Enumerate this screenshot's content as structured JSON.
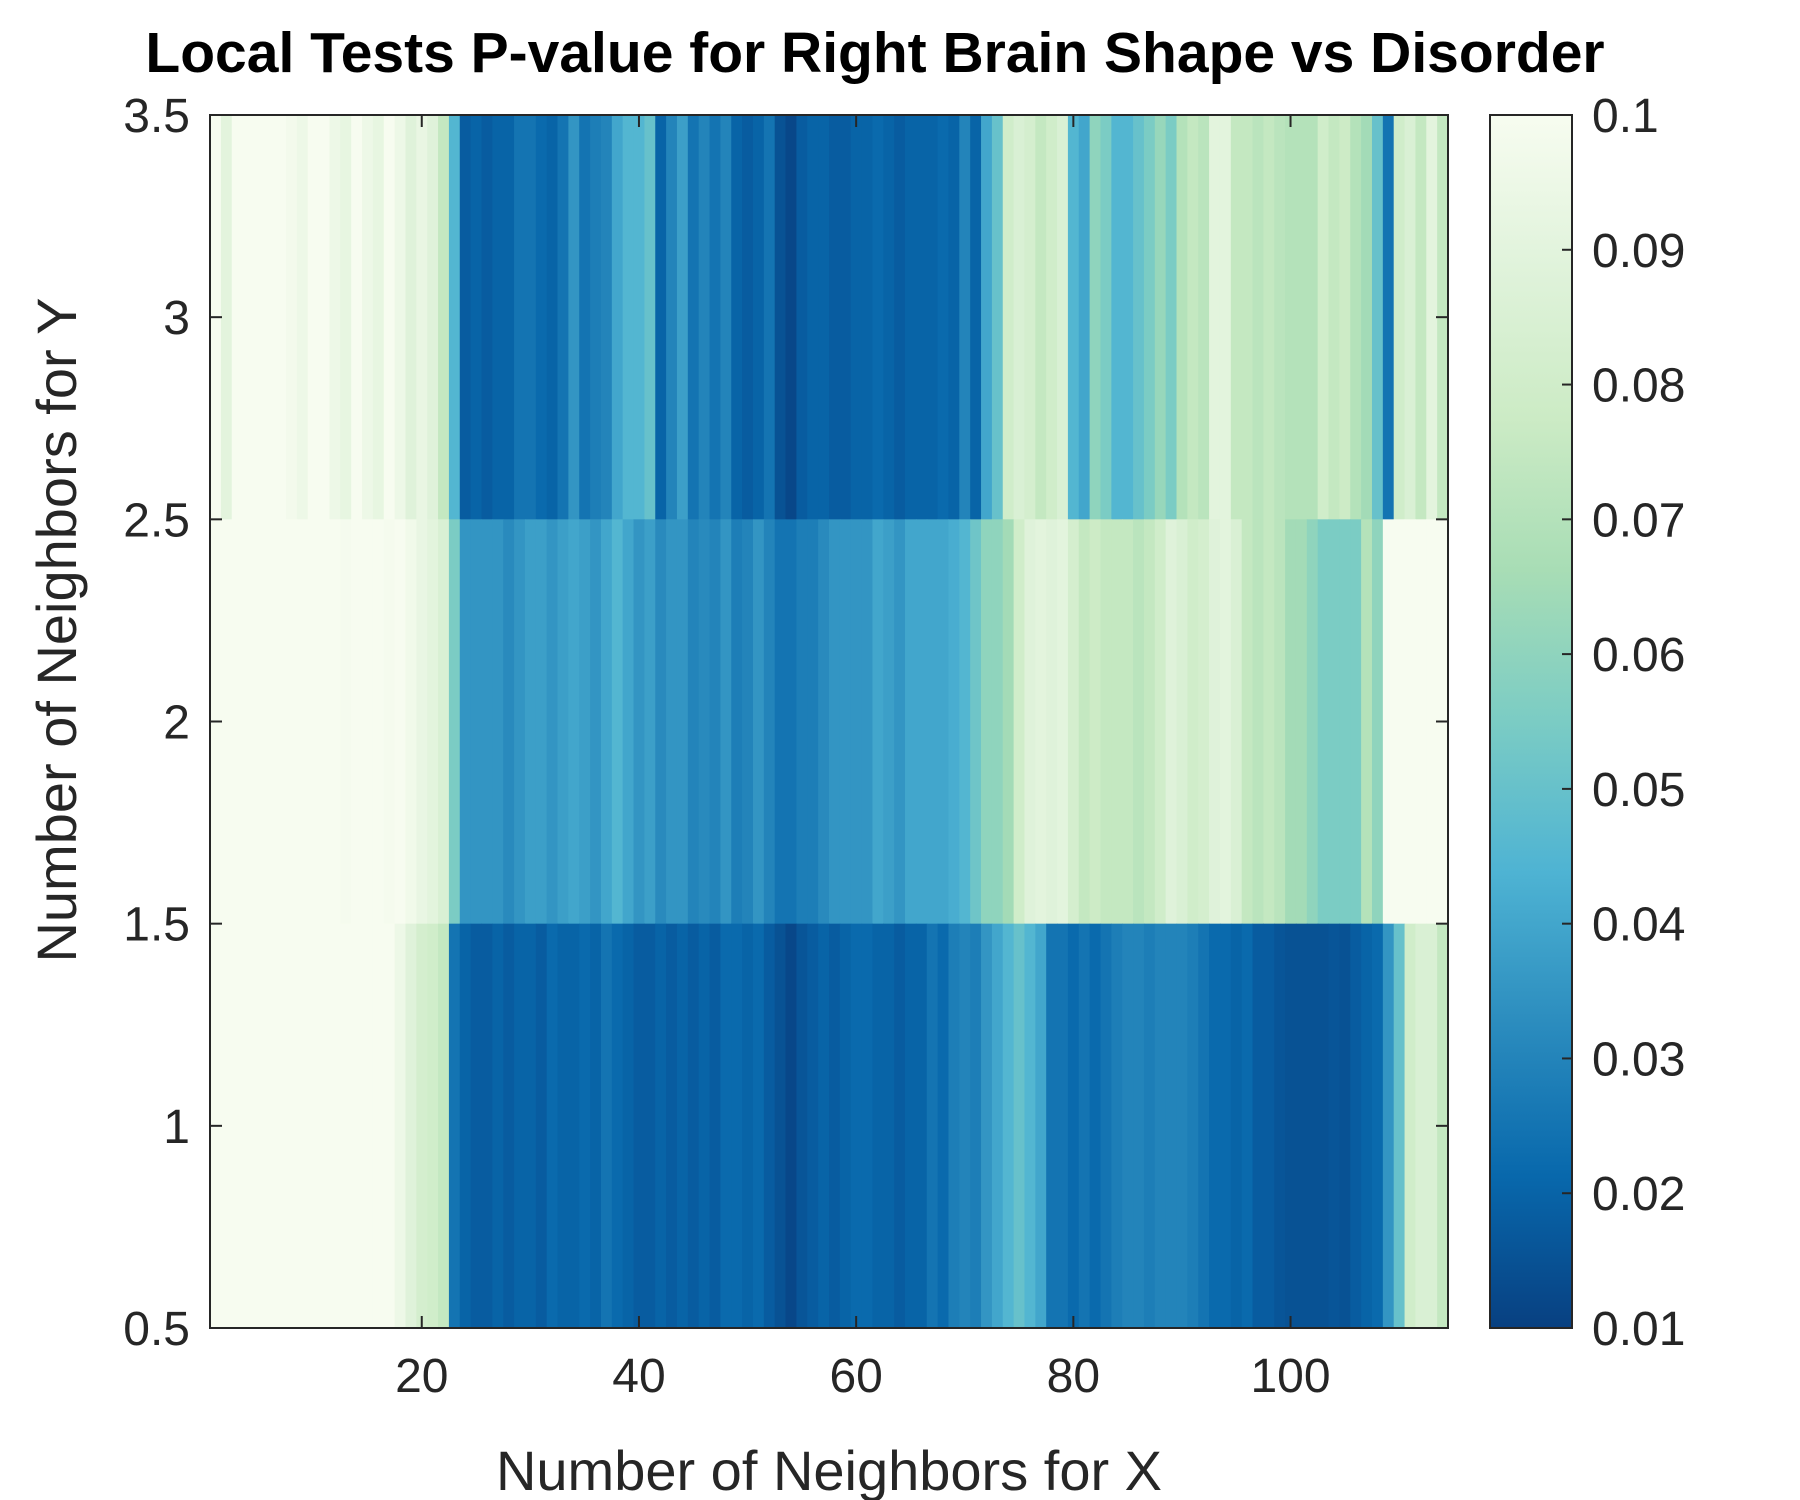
{
  "chart_data": {
    "type": "heatmap",
    "title": "Local Tests P-value for Right Brain Shape vs Disorder",
    "xlabel": "Number of Neighbors for X",
    "ylabel": "Number of Neighbors for Y",
    "xlim": [
      0.5,
      114.5
    ],
    "ylim": [
      0.5,
      3.5
    ],
    "xticks": [
      20,
      40,
      60,
      80,
      100
    ],
    "xtick_labels": [
      "20",
      "40",
      "60",
      "80",
      "100"
    ],
    "yticks": [
      0.5,
      1,
      1.5,
      2,
      2.5,
      3,
      3.5
    ],
    "ytick_labels": [
      "0.5",
      "1",
      "1.5",
      "2",
      "2.5",
      "3",
      "3.5"
    ],
    "x": [
      1,
      114
    ],
    "y": [
      1,
      2,
      3
    ],
    "rows": [
      {
        "y": 3,
        "values": [
          0.1,
          0.09,
          0.1,
          0.1,
          0.1,
          0.1,
          0.1,
          0.098,
          0.095,
          0.1,
          0.1,
          0.095,
          0.092,
          0.1,
          0.095,
          0.092,
          0.1,
          0.095,
          0.088,
          0.093,
          0.088,
          0.075,
          0.045,
          0.018,
          0.02,
          0.018,
          0.02,
          0.02,
          0.025,
          0.025,
          0.022,
          0.02,
          0.025,
          0.035,
          0.025,
          0.028,
          0.03,
          0.04,
          0.045,
          0.045,
          0.05,
          0.02,
          0.03,
          0.038,
          0.025,
          0.03,
          0.025,
          0.03,
          0.02,
          0.018,
          0.02,
          0.025,
          0.015,
          0.012,
          0.018,
          0.02,
          0.02,
          0.018,
          0.018,
          0.02,
          0.02,
          0.022,
          0.02,
          0.018,
          0.02,
          0.02,
          0.02,
          0.022,
          0.02,
          0.03,
          0.02,
          0.04,
          0.05,
          0.08,
          0.085,
          0.082,
          0.075,
          0.08,
          0.085,
          0.045,
          0.04,
          0.06,
          0.055,
          0.045,
          0.045,
          0.05,
          0.055,
          0.062,
          0.055,
          0.07,
          0.075,
          0.072,
          0.09,
          0.09,
          0.075,
          0.075,
          0.072,
          0.075,
          0.072,
          0.07,
          0.07,
          0.07,
          0.08,
          0.075,
          0.078,
          0.07,
          0.065,
          0.05,
          0.025,
          0.08,
          0.085,
          0.075,
          0.09,
          0.075
        ]
      },
      {
        "y": 2,
        "values": [
          0.1,
          0.1,
          0.1,
          0.1,
          0.1,
          0.1,
          0.1,
          0.1,
          0.1,
          0.1,
          0.1,
          0.1,
          0.099,
          0.1,
          0.1,
          0.1,
          0.099,
          0.1,
          0.097,
          0.093,
          0.09,
          0.085,
          0.055,
          0.035,
          0.035,
          0.035,
          0.035,
          0.032,
          0.035,
          0.038,
          0.038,
          0.035,
          0.038,
          0.04,
          0.038,
          0.035,
          0.04,
          0.045,
          0.04,
          0.035,
          0.038,
          0.032,
          0.035,
          0.035,
          0.03,
          0.032,
          0.03,
          0.035,
          0.028,
          0.03,
          0.035,
          0.03,
          0.025,
          0.025,
          0.028,
          0.028,
          0.032,
          0.035,
          0.035,
          0.035,
          0.035,
          0.04,
          0.038,
          0.035,
          0.04,
          0.04,
          0.04,
          0.04,
          0.042,
          0.045,
          0.052,
          0.06,
          0.06,
          0.065,
          0.08,
          0.088,
          0.09,
          0.088,
          0.09,
          0.082,
          0.075,
          0.078,
          0.075,
          0.075,
          0.075,
          0.072,
          0.075,
          0.08,
          0.088,
          0.085,
          0.08,
          0.082,
          0.088,
          0.09,
          0.085,
          0.075,
          0.072,
          0.075,
          0.072,
          0.065,
          0.065,
          0.06,
          0.055,
          0.055,
          0.055,
          0.055,
          0.07,
          0.06,
          0.1,
          0.1,
          0.1,
          0.1,
          0.1,
          0.1
        ]
      },
      {
        "y": 1,
        "values": [
          0.1,
          0.1,
          0.1,
          0.1,
          0.1,
          0.1,
          0.1,
          0.1,
          0.1,
          0.1,
          0.1,
          0.1,
          0.1,
          0.1,
          0.1,
          0.1,
          0.1,
          0.095,
          0.088,
          0.082,
          0.08,
          0.075,
          0.025,
          0.02,
          0.018,
          0.018,
          0.02,
          0.018,
          0.02,
          0.02,
          0.018,
          0.022,
          0.02,
          0.02,
          0.022,
          0.02,
          0.025,
          0.022,
          0.02,
          0.018,
          0.018,
          0.02,
          0.018,
          0.02,
          0.018,
          0.02,
          0.018,
          0.022,
          0.022,
          0.02,
          0.022,
          0.018,
          0.015,
          0.012,
          0.016,
          0.018,
          0.02,
          0.018,
          0.02,
          0.022,
          0.022,
          0.02,
          0.02,
          0.018,
          0.02,
          0.02,
          0.025,
          0.022,
          0.028,
          0.03,
          0.028,
          0.035,
          0.04,
          0.045,
          0.05,
          0.045,
          0.04,
          0.025,
          0.025,
          0.022,
          0.025,
          0.022,
          0.025,
          0.028,
          0.03,
          0.03,
          0.028,
          0.03,
          0.03,
          0.03,
          0.028,
          0.025,
          0.022,
          0.022,
          0.02,
          0.022,
          0.018,
          0.018,
          0.016,
          0.015,
          0.015,
          0.015,
          0.015,
          0.016,
          0.015,
          0.018,
          0.02,
          0.022,
          0.035,
          0.05,
          0.08,
          0.085,
          0.085,
          0.075
        ]
      }
    ],
    "colorbar": {
      "min": 0.01,
      "max": 0.1,
      "ticks": [
        0.01,
        0.02,
        0.03,
        0.04,
        0.05,
        0.06,
        0.07,
        0.08,
        0.09,
        0.1
      ],
      "tick_labels": [
        "0.01",
        "0.02",
        "0.03",
        "0.04",
        "0.05",
        "0.06",
        "0.07",
        "0.08",
        "0.09",
        "0.1"
      ],
      "colormap": "GnBu reversed",
      "colors": [
        "#084081",
        "#0868ac",
        "#2b8cbe",
        "#4eb3d3",
        "#7bccc4",
        "#a8ddb5",
        "#ccebc5",
        "#e0f3db",
        "#f7fcf0"
      ]
    },
    "grid": false,
    "legend": "none"
  }
}
